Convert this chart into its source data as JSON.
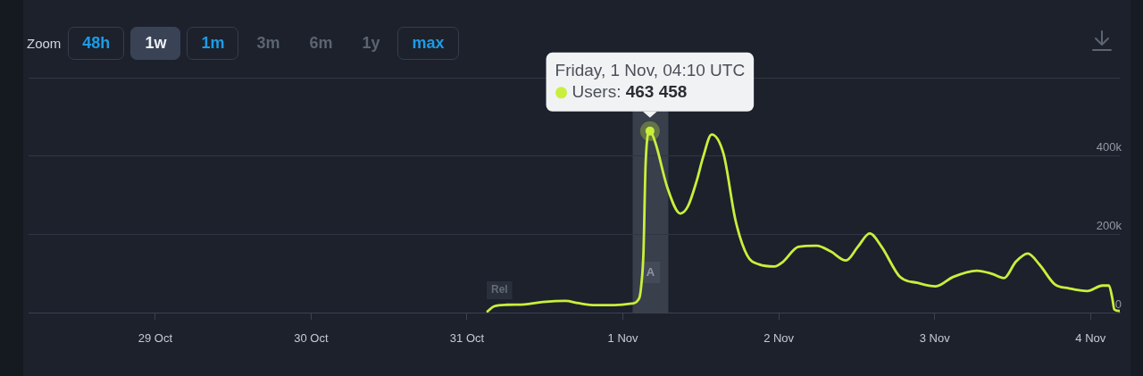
{
  "chart_data": {
    "type": "line",
    "x": [
      "--10-31T03:10",
      "--10-31T04:10",
      "--10-31T06:10",
      "--10-31T08:50",
      "--10-31T11:40",
      "--10-31T15:10",
      "--10-31T17:10",
      "--10-31T19:50",
      "--10-31T22:40",
      "--11-01T01:20",
      "--11-01T02:30",
      "--11-01T02:50",
      "--11-01T03:10",
      "--11-01T03:30",
      "--11-01T04:10",
      "--11-01T05:00",
      "--11-01T06:50",
      "--11-01T08:50",
      "--11-01T10:00",
      "--11-01T11:20",
      "--11-01T12:20",
      "--11-01T13:40",
      "--11-01T15:30",
      "--11-01T17:20",
      "--11-01T19:10",
      "--11-01T21:00",
      "--11-01T23:20",
      "--11-02T00:40",
      "--11-02T03:00",
      "--11-02T05:50",
      "--11-02T08:00",
      "--11-02T10:20",
      "--11-02T12:10",
      "--11-02T14:00",
      "--11-02T15:50",
      "--11-02T18:40",
      "--11-02T21:20",
      "--11-03T00:10",
      "--11-03T02:50",
      "--11-03T06:30",
      "--11-03T08:50",
      "--11-03T10:40",
      "--11-03T12:30",
      "--11-03T14:20",
      "--11-03T16:10",
      "--11-03T18:30",
      "--11-03T20:40",
      "--11-03T23:30",
      "--11-04T01:50",
      "--11-04T02:50",
      "--11-04T03:20",
      "--11-04T03:40",
      "--11-04T04:30"
    ],
    "series": [
      {
        "name": "Users:",
        "color": "#c9ef3c",
        "values": [
          3000,
          16000,
          20000,
          21000,
          27000,
          30000,
          24000,
          19000,
          19000,
          23000,
          36000,
          70000,
          152000,
          381000,
          463458,
          434000,
          320000,
          253000,
          271000,
          335000,
          396000,
          455000,
          405000,
          236000,
          145000,
          123000,
          118000,
          130000,
          168000,
          171000,
          156000,
          133000,
          168000,
          202000,
          168000,
          91000,
          76000,
          67000,
          91000,
          107000,
          99000,
          88000,
          130000,
          151000,
          122000,
          72000,
          62000,
          55000,
          69000,
          69000,
          38000,
          8000,
          4000
        ],
        "value_labels": [
          null,
          null,
          null,
          null,
          null,
          null,
          null,
          null,
          null,
          null,
          null,
          null,
          null,
          null,
          "463 458",
          null,
          null,
          null,
          null,
          null,
          null,
          null,
          null,
          null,
          null,
          null,
          null,
          null,
          null,
          null,
          null,
          null,
          null,
          null,
          null,
          null,
          null,
          null,
          null,
          null,
          null,
          null,
          null,
          null,
          null,
          null,
          null,
          null,
          null,
          null,
          null,
          null,
          null
        ]
      }
    ],
    "xlim": [
      "--10-28T04:30",
      "--11-04T04:30"
    ],
    "xticks": [
      {
        "value": "--10-29",
        "label": "29 Oct"
      },
      {
        "value": "--10-30",
        "label": "30 Oct"
      },
      {
        "value": "--10-31",
        "label": "31 Oct"
      },
      {
        "value": "--11-01",
        "label": "1 Nov"
      },
      {
        "value": "--11-02",
        "label": "2 Nov"
      },
      {
        "value": "--11-03",
        "label": "3 Nov"
      },
      {
        "value": "--11-04",
        "label": "4 Nov"
      }
    ],
    "ylim": [
      0,
      600000
    ],
    "yticks": [
      0,
      {
        "value": 200000,
        "label": "200k"
      },
      {
        "value": 400000,
        "label": "400k"
      },
      {
        "value": 600000,
        "label": null
      }
    ],
    "grid": "y",
    "bands": [
      {
        "axis": "x",
        "from": "--11-01T01:30",
        "to": "--11-01T07:00",
        "label": "A",
        "color": "#393f4b"
      }
    ],
    "annotations": [
      "Zoom",
      "48h",
      "1w",
      "1m",
      "3m",
      "6m",
      "1y",
      "max",
      "Friday, 1 Nov, 04:10 UTC",
      {
        "text": "Rel",
        "x": "--10-31T05:00",
        "y": 57000
      }
    ]
  }
}
